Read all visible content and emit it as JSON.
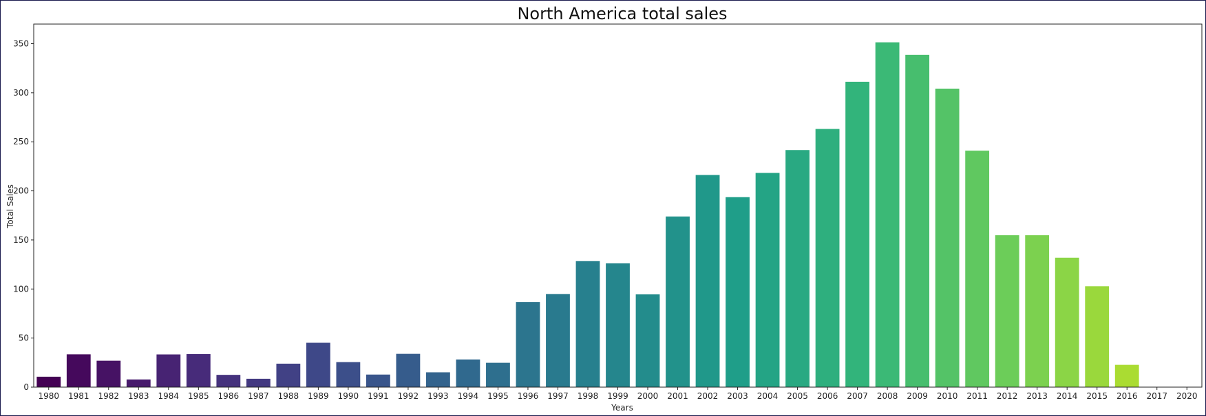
{
  "chart_data": {
    "type": "bar",
    "title": "North America total sales",
    "xlabel": "Years",
    "ylabel": "Total Sales",
    "ylim": [
      0,
      370
    ],
    "yticks": [
      0,
      50,
      100,
      150,
      200,
      250,
      300,
      350
    ],
    "grid": false,
    "legend": "none",
    "colormap": "viridis",
    "categories": [
      "1980",
      "1981",
      "1982",
      "1983",
      "1984",
      "1985",
      "1986",
      "1987",
      "1988",
      "1989",
      "1990",
      "1991",
      "1992",
      "1993",
      "1994",
      "1995",
      "1996",
      "1997",
      "1998",
      "1999",
      "2000",
      "2001",
      "2002",
      "2003",
      "2004",
      "2005",
      "2006",
      "2007",
      "2008",
      "2009",
      "2010",
      "2011",
      "2012",
      "2013",
      "2014",
      "2015",
      "2016",
      "2017",
      "2020"
    ],
    "values": [
      10.6,
      33.4,
      26.9,
      7.8,
      33.3,
      33.7,
      12.5,
      8.5,
      23.9,
      45.2,
      25.5,
      12.8,
      33.9,
      15.1,
      28.2,
      24.8,
      86.8,
      94.8,
      128.4,
      126.1,
      94.5,
      173.9,
      216.2,
      193.6,
      218.3,
      241.6,
      263.1,
      311.2,
      351.4,
      338.6,
      304.2,
      241.0,
      154.8,
      154.8,
      131.9,
      102.8,
      22.7,
      0.0,
      0.3
    ],
    "colors": [
      "#440154",
      "#471164",
      "#481f70",
      "#472d7b",
      "#443a83",
      "#404688",
      "#3b528b",
      "#365d8d",
      "#31688e",
      "#2c728e",
      "#287c8e",
      "#24868e",
      "#21908d",
      "#1f9a8a",
      "#20a386",
      "#22a884",
      "#29af7f",
      "#35b779",
      "#43bf71",
      "#50c46a",
      "#5ec962",
      "#6ece58",
      "#7ad151",
      "#86d549",
      "#95d840",
      "#a5db36",
      "#b5de2b",
      "#c2df23",
      "#d2e21b",
      "#dfe318",
      "#440154",
      "#440154",
      "#440154",
      "#440154",
      "#440154",
      "#440154",
      "#440154",
      "#440154",
      "#440154"
    ]
  }
}
